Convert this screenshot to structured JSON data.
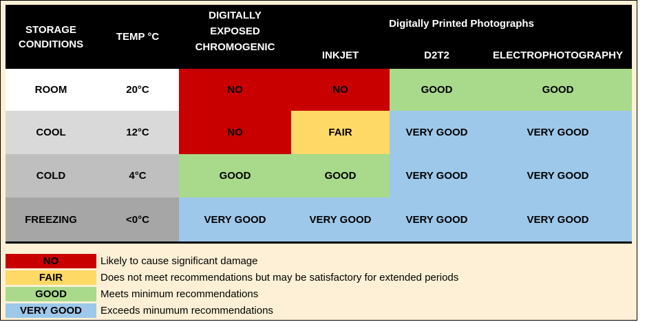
{
  "colors": {
    "header_bg": "#000000",
    "no": "#c80000",
    "fair": "#ffd966",
    "good": "#a9d98a",
    "very_good": "#9dc8ea",
    "room_label_bg": "#ffffff",
    "cool_label_bg": "#d9d9d9",
    "cold_label_bg": "#bfbfbf",
    "freezing_label_bg": "#a6a6a6",
    "page_bg": "#fdf0d6"
  },
  "header": {
    "storage_conditions": "STORAGE\nCONDITIONS",
    "temp": "TEMP °C",
    "chromogenic": "DIGITALLY\nEXPOSED\nCHROMOGENIC",
    "printed_group": "Digitally Printed Photographs",
    "inkjet": "INKJET",
    "d2t2": "D2T2",
    "electrophotography": "ELECTROPHOTOGRAPHY"
  },
  "rows": [
    {
      "condition": "ROOM",
      "temp": "20°C",
      "chromogenic": "NO",
      "inkjet": "NO",
      "d2t2": "GOOD",
      "electrophotography": "GOOD"
    },
    {
      "condition": "COOL",
      "temp": "12°C",
      "chromogenic": "NO",
      "inkjet": "FAIR",
      "d2t2": "VERY GOOD",
      "electrophotography": "VERY GOOD"
    },
    {
      "condition": "COLD",
      "temp": "4°C",
      "chromogenic": "GOOD",
      "inkjet": "GOOD",
      "d2t2": "VERY GOOD",
      "electrophotography": "VERY GOOD"
    },
    {
      "condition": "FREEZING",
      "temp": "<0°C",
      "chromogenic": "VERY GOOD",
      "inkjet": "VERY GOOD",
      "d2t2": "VERY GOOD",
      "electrophotography": "VERY GOOD"
    }
  ],
  "legend": [
    {
      "label": "NO",
      "text": "Likely to cause significant damage"
    },
    {
      "label": "FAIR",
      "text": "Does not meet recommendations but may be satisfactory for extended periods"
    },
    {
      "label": "GOOD",
      "text": "Meets minimum recommendations"
    },
    {
      "label": "VERY GOOD",
      "text": "Exceeds minumum recommendations"
    }
  ]
}
